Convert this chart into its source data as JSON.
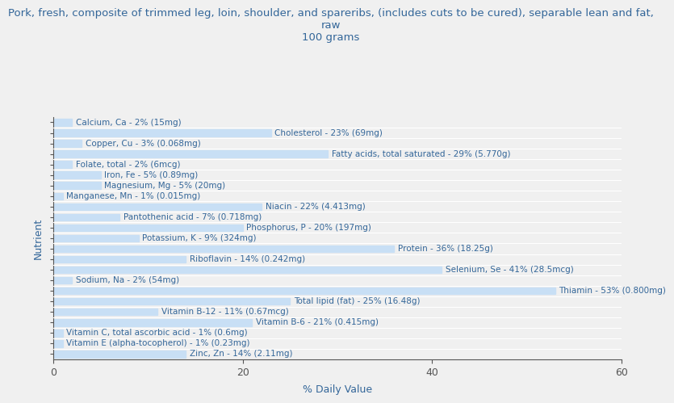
{
  "title": "Pork, fresh, composite of trimmed leg, loin, shoulder, and spareribs, (includes cuts to be cured), separable lean and fat,\nraw\n100 grams",
  "nutrients": [
    {
      "label": "Calcium, Ca - 2% (15mg)",
      "value": 2
    },
    {
      "label": "Cholesterol - 23% (69mg)",
      "value": 23
    },
    {
      "label": "Copper, Cu - 3% (0.068mg)",
      "value": 3
    },
    {
      "label": "Fatty acids, total saturated - 29% (5.770g)",
      "value": 29
    },
    {
      "label": "Folate, total - 2% (6mcg)",
      "value": 2
    },
    {
      "label": "Iron, Fe - 5% (0.89mg)",
      "value": 5
    },
    {
      "label": "Magnesium, Mg - 5% (20mg)",
      "value": 5
    },
    {
      "label": "Manganese, Mn - 1% (0.015mg)",
      "value": 1
    },
    {
      "label": "Niacin - 22% (4.413mg)",
      "value": 22
    },
    {
      "label": "Pantothenic acid - 7% (0.718mg)",
      "value": 7
    },
    {
      "label": "Phosphorus, P - 20% (197mg)",
      "value": 20
    },
    {
      "label": "Potassium, K - 9% (324mg)",
      "value": 9
    },
    {
      "label": "Protein - 36% (18.25g)",
      "value": 36
    },
    {
      "label": "Riboflavin - 14% (0.242mg)",
      "value": 14
    },
    {
      "label": "Selenium, Se - 41% (28.5mcg)",
      "value": 41
    },
    {
      "label": "Sodium, Na - 2% (54mg)",
      "value": 2
    },
    {
      "label": "Thiamin - 53% (0.800mg)",
      "value": 53
    },
    {
      "label": "Total lipid (fat) - 25% (16.48g)",
      "value": 25
    },
    {
      "label": "Vitamin B-12 - 11% (0.67mcg)",
      "value": 11
    },
    {
      "label": "Vitamin B-6 - 21% (0.415mg)",
      "value": 21
    },
    {
      "label": "Vitamin C, total ascorbic acid - 1% (0.6mg)",
      "value": 1
    },
    {
      "label": "Vitamin E (alpha-tocopherol) - 1% (0.23mg)",
      "value": 1
    },
    {
      "label": "Zinc, Zn - 14% (2.11mg)",
      "value": 14
    }
  ],
  "bar_color": "#c8dff5",
  "text_color": "#336699",
  "tick_color": "#555555",
  "background_color": "#f0f0f0",
  "xlabel": "% Daily Value",
  "ylabel": "Nutrient",
  "xlim": [
    0,
    60
  ],
  "xticks": [
    0,
    20,
    40,
    60
  ],
  "title_fontsize": 9.5,
  "label_fontsize": 7.5,
  "axis_fontsize": 9
}
